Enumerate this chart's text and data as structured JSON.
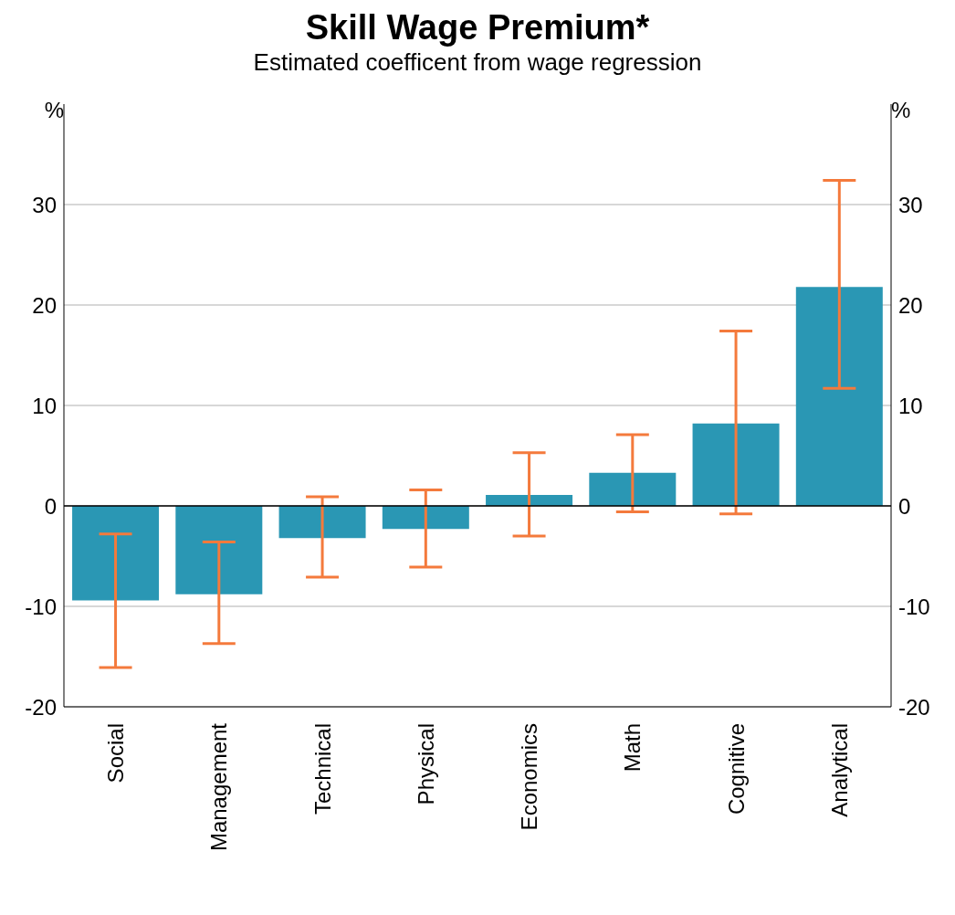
{
  "chart_data": {
    "type": "bar",
    "title": "Skill Wage Premium*",
    "subtitle": "Estimated coefficent from wage regression",
    "ylabel": "%",
    "y2label": "%",
    "categories": [
      "Social",
      "Management",
      "Technical",
      "Physical",
      "Economics",
      "Math",
      "Cognitive",
      "Analytical"
    ],
    "values": [
      -9.4,
      -8.8,
      -3.2,
      -2.3,
      1.1,
      3.3,
      8.2,
      21.8
    ],
    "errors": [
      [
        -16.1,
        -2.8
      ],
      [
        -13.7,
        -3.6
      ],
      [
        -7.1,
        0.9
      ],
      [
        -6.1,
        1.6
      ],
      [
        -3.0,
        5.3
      ],
      [
        -0.6,
        7.1
      ],
      [
        -0.8,
        17.4
      ],
      [
        11.7,
        32.4
      ]
    ],
    "color": "#2a97b4",
    "ylim": [
      -20,
      40
    ],
    "yticks": [
      -20,
      -10,
      0,
      10,
      20,
      30
    ],
    "y2lim": [
      -20,
      40
    ],
    "y2ticks": [
      -20,
      -10,
      0,
      10,
      20,
      30
    ],
    "ref_lines": [
      {
        "axis": "y",
        "value": 0,
        "color": "#000000"
      }
    ],
    "grid": "y"
  }
}
